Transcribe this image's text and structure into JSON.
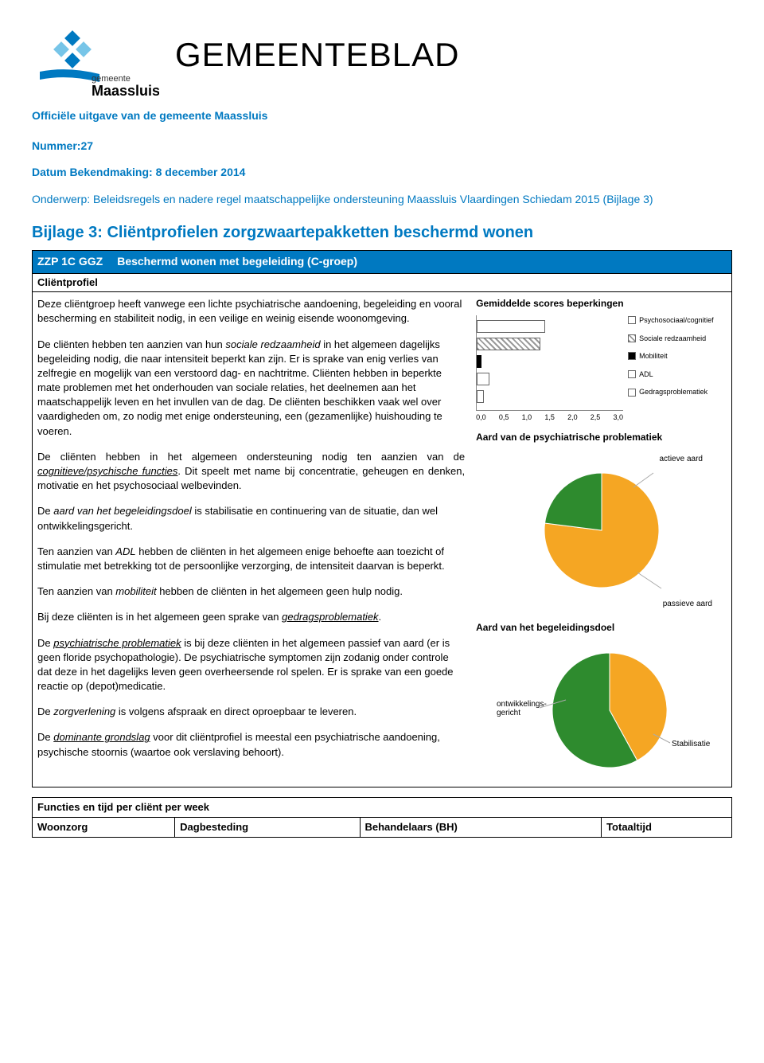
{
  "header": {
    "doc_title": "GEMEENTEBLAD",
    "subtitle": "Officiële uitgave van de gemeente Maassluis",
    "number_label": "Nummer:27",
    "date_label": "Datum Bekendmaking: 8 december 2014",
    "subject": "Onderwerp: Beleidsregels en nadere regel maatschappelijke ondersteuning Maassluis Vlaardingen Schiedam 2015  (Bijlage 3)",
    "bijlage_title": "Bijlage 3:  Cliëntprofielen zorgzwaartepakketten beschermd wonen",
    "logo_text_top": "gemeente",
    "logo_text_bottom": "Maassluis"
  },
  "profile": {
    "header_code": "ZZP 1C GGZ",
    "header_desc": "Beschermd wonen met begeleiding (C-groep)",
    "sub": "Cliëntprofiel",
    "p1": "Deze cliëntgroep heeft vanwege een lichte psychiatrische aandoening, begeleiding en vooral bescherming en stabiliteit nodig, in een veilige en weinig eisende woonomgeving.",
    "p2a": "De cliënten hebben ten aanzien van hun ",
    "p2_em": "sociale redzaamheid",
    "p2b": " in het algemeen dagelijks begeleiding nodig, die naar intensiteit beperkt kan zijn. Er is sprake van enig verlies van zelfregie en mogelijk van een verstoord dag- en nachtritme. Cliënten hebben in beperkte mate problemen met het onderhouden van sociale relaties, het deelnemen aan het maatschappelijk leven en het invullen van de dag. De cliënten beschikken vaak wel over vaardigheden om, zo nodig met enige ondersteuning, een (gezamenlijke) huishouding te voeren.",
    "p3a": "De cliënten hebben in het algemeen ondersteuning nodig ten aanzien van de ",
    "p3_em": "cognitieve/psychische functies",
    "p3b": ". Dit speelt met name bij concentratie, geheugen en denken, motivatie en het psychosociaal welbevinden.",
    "p4a": "De ",
    "p4_em": "aard van het begeleidingsdoel",
    "p4b": " is stabilisatie en continuering van de situatie, dan wel ontwikkelingsgericht.",
    "p5a": "Ten aanzien van ",
    "p5_em": "ADL",
    "p5b": " hebben de cliënten in het algemeen enige behoefte aan toezicht of stimulatie met betrekking tot de persoonlijke verzorging, de intensiteit daarvan is beperkt.",
    "p6a": "Ten aanzien van ",
    "p6_em": "mobiliteit",
    "p6b": " hebben de cliënten in het algemeen geen hulp nodig.",
    "p7a": "Bij deze cliënten is in het algemeen geen sprake van ",
    "p7_em": "gedragsproblematiek",
    "p7b": ".",
    "p8a": "De ",
    "p8_em": "psychiatrische problematiek",
    "p8b": " is bij deze cliënten in het algemeen passief van aard (er is geen floride psychopathologie). De psychiatrische symptomen zijn zodanig onder controle dat deze in het dagelijks leven geen overheersende rol spelen. Er is sprake van een goede reactie op (depot)medicatie.",
    "p9a": "De ",
    "p9_em": "zorgverlening",
    "p9b": " is volgens afspraak en direct oproepbaar te leveren.",
    "p10a": "De ",
    "p10_em": "dominante grondslag",
    "p10b": " voor dit cliëntprofiel is meestal een psychiatrische aandoening, psychische stoornis (waartoe ook verslaving behoort)."
  },
  "chart_scores": {
    "title": "Gemiddelde scores beperkingen",
    "xmax": 3.0,
    "xticks": [
      "0,0",
      "0,5",
      "1,0",
      "1,5",
      "2,0",
      "2,5",
      "3,0"
    ],
    "series": [
      {
        "label": "Psychosociaal/cognitief",
        "value": 1.4,
        "style": "white"
      },
      {
        "label": "Sociale redzaamheid",
        "value": 1.3,
        "style": "hatch"
      },
      {
        "label": "Mobiliteit",
        "value": 0.1,
        "style": "solid"
      },
      {
        "label": "ADL",
        "value": 0.25,
        "style": "white"
      },
      {
        "label": "Gedragsproblematiek",
        "value": 0.15,
        "style": "white"
      }
    ]
  },
  "chart_aard": {
    "title": "Aard van de psychiatrische problematiek",
    "top_label": "actieve aard",
    "bottom_label": "passieve aard",
    "slices": [
      {
        "label": "passieve aard",
        "fraction": 0.77,
        "color": "#f5a623"
      },
      {
        "label": "actieve aard",
        "fraction": 0.23,
        "color": "#2e8b2e"
      }
    ]
  },
  "chart_doel": {
    "title": "Aard van het begeleidingsdoel",
    "slices": [
      {
        "label": "ontwikkelings-\ngericht",
        "fraction": 0.42,
        "color": "#f5a623"
      },
      {
        "label": "Stabilisatie",
        "fraction": 0.58,
        "color": "#2e8b2e"
      }
    ],
    "left_label": "ontwikkelings-\ngericht",
    "right_label": "Stabilisatie"
  },
  "footer": {
    "section": "Functies en tijd per cliënt per week",
    "cols": [
      "Woonzorg",
      "Dagbesteding",
      "Behandelaars (BH)",
      "Totaaltijd"
    ]
  }
}
